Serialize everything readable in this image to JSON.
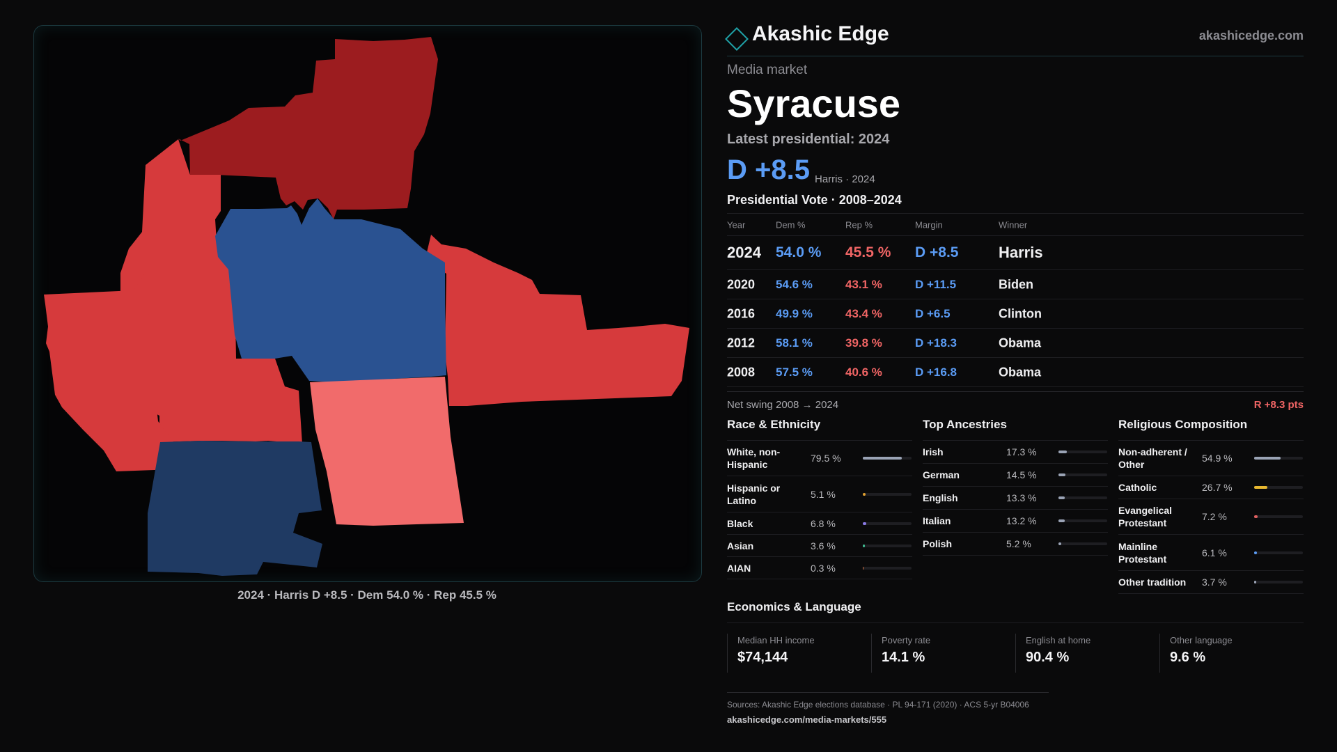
{
  "brand": {
    "name": "Akashic Edge",
    "url": "akashicedge.com"
  },
  "colors": {
    "dem_accent": "#5b9cf5",
    "rep_accent": "#f06565",
    "county_rep_dark": "#9c1c1f",
    "county_rep": "#d63a3c",
    "county_rep_light": "#f16b6b",
    "county_dem": "#2a5291",
    "county_dem_dark": "#1f3a63",
    "teal_accent": "#1fa2a8"
  },
  "market": {
    "label": "Media market",
    "name": "Syracuse",
    "latest_label": "Latest presidential: 2024",
    "headline_margin": "D +8.5",
    "headline_sub": "Harris · 2024"
  },
  "map": {
    "caption": "2024 · Harris D +8.5 · Dem 54.0 % · Rep 45.5 %",
    "counties": [
      {
        "lean": "rep-dark"
      },
      {
        "lean": "rep"
      },
      {
        "lean": "rep"
      },
      {
        "lean": "rep"
      },
      {
        "lean": "dem"
      },
      {
        "lean": "rep-light"
      },
      {
        "lean": "dem-dark"
      }
    ]
  },
  "vote_table": {
    "title": "Presidential Vote · 2008–2024",
    "headers": {
      "year": "Year",
      "dem": "Dem %",
      "rep": "Rep %",
      "margin": "Margin",
      "winner": "Winner"
    },
    "rows": [
      {
        "year": "2024",
        "dem": "54.0 %",
        "rep": "45.5 %",
        "margin": "D +8.5",
        "winner": "Harris"
      },
      {
        "year": "2020",
        "dem": "54.6 %",
        "rep": "43.1 %",
        "margin": "D +11.5",
        "winner": "Biden"
      },
      {
        "year": "2016",
        "dem": "49.9 %",
        "rep": "43.4 %",
        "margin": "D +6.5",
        "winner": "Clinton"
      },
      {
        "year": "2012",
        "dem": "58.1 %",
        "rep": "39.8 %",
        "margin": "D +18.3",
        "winner": "Obama"
      },
      {
        "year": "2008",
        "dem": "57.5 %",
        "rep": "40.6 %",
        "margin": "D +16.8",
        "winner": "Obama"
      }
    ]
  },
  "swing": {
    "label": "Net swing 2008 → 2024",
    "value": "R +8.3 pts"
  },
  "race": {
    "title": "Race & Ethnicity",
    "items": [
      {
        "name": "White, non-Hispanic",
        "value": "79.5 %",
        "pct": 79.5,
        "color": "#9aa3b5"
      },
      {
        "name": "Hispanic or Latino",
        "value": "5.1 %",
        "pct": 5.1,
        "color": "#e0a030"
      },
      {
        "name": "Black",
        "value": "6.8 %",
        "pct": 6.8,
        "color": "#8a7ae6"
      },
      {
        "name": "Asian",
        "value": "3.6 %",
        "pct": 3.6,
        "color": "#3fb890"
      },
      {
        "name": "AIAN",
        "value": "0.3 %",
        "pct": 0.3,
        "color": "#d07040"
      }
    ]
  },
  "ancestry": {
    "title": "Top Ancestries",
    "items": [
      {
        "name": "Irish",
        "value": "17.3 %",
        "pct": 17.3,
        "color": "#9aa3b5"
      },
      {
        "name": "German",
        "value": "14.5 %",
        "pct": 14.5,
        "color": "#9aa3b5"
      },
      {
        "name": "English",
        "value": "13.3 %",
        "pct": 13.3,
        "color": "#9aa3b5"
      },
      {
        "name": "Italian",
        "value": "13.2 %",
        "pct": 13.2,
        "color": "#9aa3b5"
      },
      {
        "name": "Polish",
        "value": "5.2 %",
        "pct": 5.2,
        "color": "#9aa3b5"
      }
    ]
  },
  "religion": {
    "title": "Religious Composition",
    "items": [
      {
        "name": "Non-adherent / Other",
        "value": "54.9 %",
        "pct": 54.9,
        "color": "#9aa3b5"
      },
      {
        "name": "Catholic",
        "value": "26.7 %",
        "pct": 26.7,
        "color": "#e8b830"
      },
      {
        "name": "Evangelical Protestant",
        "value": "7.2 %",
        "pct": 7.2,
        "color": "#e06060"
      },
      {
        "name": "Mainline Protestant",
        "value": "6.1 %",
        "pct": 6.1,
        "color": "#5b9cf5"
      },
      {
        "name": "Other tradition",
        "value": "3.7 %",
        "pct": 3.7,
        "color": "#9aa3b5"
      }
    ]
  },
  "economics": {
    "title": "Economics & Language",
    "items": [
      {
        "label": "Median HH income",
        "value": "$74,144"
      },
      {
        "label": "Poverty rate",
        "value": "14.1 %"
      },
      {
        "label": "English at home",
        "value": "90.4 %"
      },
      {
        "label": "Other language",
        "value": "9.6 %"
      }
    ]
  },
  "sources": {
    "text": "Sources: Akashic Edge elections database · PL 94-171 (2020) · ACS 5-yr B04006",
    "url": "akashicedge.com/media-markets/555"
  }
}
